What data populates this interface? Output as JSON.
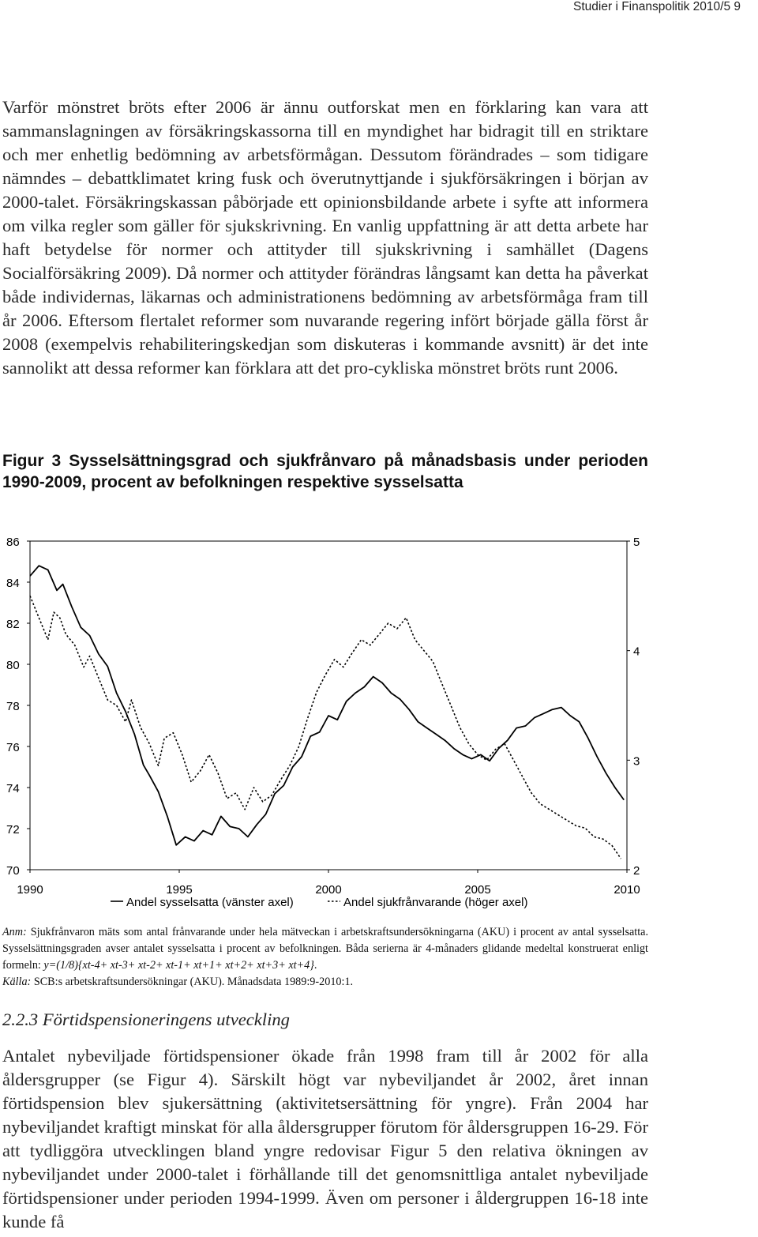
{
  "header": {
    "running_head": "Studier i Finanspolitik 2010/5  9"
  },
  "paragraph1": "Varför mönstret bröts efter 2006 är ännu outforskat men en förklaring kan vara att sammanslagningen av försäkringskassorna till en myndighet har bidragit till en striktare och mer enhetlig bedömning av arbetsförmågan. Dessutom förändrades – som tidigare nämndes – debattklimatet kring fusk och överutnyttjande i sjukförsäkringen i början av 2000-talet. Försäkringskassan påbörjade ett opinionsbildande arbete i syfte att informera om vilka regler som gäller för sjukskrivning. En vanlig uppfattning är att detta arbete har haft betydelse för normer och attityder till sjukskrivning i samhället (Dagens Socialförsäkring 2009). Då normer och attityder förändras långsamt kan detta ha påverkat både individernas, läkarnas och administrationens bedömning av arbetsförmåga fram till år 2006. Eftersom flertalet reformer som nuvarande regering infört började gälla först år 2008 (exempelvis rehabiliteringskedjan som diskuteras i kommande avsnitt) är det inte sannolikt att dessa reformer kan förklara att det pro-cykliska mönstret bröts runt 2006.",
  "figure": {
    "caption": "Figur 3 Sysselsättningsgrad och sjukfrånvaro på månadsbasis under perioden 1990-2009, procent av befolkningen respektive sysselsatta",
    "note": {
      "anm_label": "Anm:",
      "anm_text": " Sjukfrånvaron mäts som antal frånvarande under hela mätveckan i arbetskraftsundersökningarna (AKU) i procent av antal sysselsatta. Sysselsättningsgraden avser antalet sysselsatta i procent av befolkningen. Båda serierna är 4-månaders glidande medeltal konstruerat enligt formeln: ",
      "formula": "y=(1/8){xt-4+ xt-3+ xt-2+ xt-1+ xt+1+ xt+2+ xt+3+ xt+4}",
      "anm_end": ".",
      "source_label": "Källa:",
      "source_text": " SCB:s arbetskraftsundersökningar (AKU). Månadsdata 1989:9-2010:1."
    }
  },
  "chart_data": {
    "type": "line",
    "title": "",
    "x_ticks": [
      "1990",
      "1995",
      "2000",
      "2005",
      "2010"
    ],
    "xlim": [
      1990,
      2010
    ],
    "y_left": {
      "ticks": [
        "86",
        "84",
        "82",
        "80",
        "78",
        "76",
        "74",
        "72",
        "70"
      ],
      "range": [
        70,
        86
      ]
    },
    "y_right": {
      "ticks": [
        "5",
        "4",
        "3",
        "2"
      ],
      "range": [
        2,
        5
      ]
    },
    "grid": false,
    "legend_position": "bottom",
    "series": [
      {
        "name": "Andel sysselsatta (vänster axel)",
        "axis": "left",
        "style": "solid",
        "color": "#000000",
        "points": [
          [
            1990.0,
            84.3
          ],
          [
            1990.3,
            84.8
          ],
          [
            1990.6,
            84.6
          ],
          [
            1990.9,
            83.6
          ],
          [
            1991.1,
            83.9
          ],
          [
            1991.4,
            82.8
          ],
          [
            1991.7,
            81.8
          ],
          [
            1992.0,
            81.4
          ],
          [
            1992.3,
            80.5
          ],
          [
            1992.6,
            79.9
          ],
          [
            1992.9,
            78.6
          ],
          [
            1993.2,
            77.7
          ],
          [
            1993.5,
            76.6
          ],
          [
            1993.8,
            75.1
          ],
          [
            1994.0,
            74.6
          ],
          [
            1994.3,
            73.8
          ],
          [
            1994.6,
            72.6
          ],
          [
            1994.9,
            71.2
          ],
          [
            1995.2,
            71.6
          ],
          [
            1995.5,
            71.4
          ],
          [
            1995.8,
            71.9
          ],
          [
            1996.1,
            71.7
          ],
          [
            1996.4,
            72.6
          ],
          [
            1996.7,
            72.1
          ],
          [
            1997.0,
            72.0
          ],
          [
            1997.3,
            71.6
          ],
          [
            1997.6,
            72.2
          ],
          [
            1997.9,
            72.7
          ],
          [
            1998.2,
            73.7
          ],
          [
            1998.5,
            74.1
          ],
          [
            1998.8,
            75.0
          ],
          [
            1999.1,
            75.5
          ],
          [
            1999.4,
            76.5
          ],
          [
            1999.7,
            76.7
          ],
          [
            2000.0,
            77.5
          ],
          [
            2000.3,
            77.3
          ],
          [
            2000.6,
            78.2
          ],
          [
            2000.9,
            78.6
          ],
          [
            2001.2,
            78.9
          ],
          [
            2001.5,
            79.4
          ],
          [
            2001.8,
            79.1
          ],
          [
            2002.1,
            78.6
          ],
          [
            2002.4,
            78.3
          ],
          [
            2002.7,
            77.8
          ],
          [
            2003.0,
            77.2
          ],
          [
            2003.3,
            76.9
          ],
          [
            2003.6,
            76.6
          ],
          [
            2003.9,
            76.3
          ],
          [
            2004.2,
            75.9
          ],
          [
            2004.5,
            75.6
          ],
          [
            2004.8,
            75.4
          ],
          [
            2005.1,
            75.6
          ],
          [
            2005.4,
            75.3
          ],
          [
            2005.7,
            75.9
          ],
          [
            2006.0,
            76.3
          ],
          [
            2006.3,
            76.9
          ],
          [
            2006.6,
            77.0
          ],
          [
            2006.9,
            77.4
          ],
          [
            2007.2,
            77.6
          ],
          [
            2007.5,
            77.8
          ],
          [
            2007.8,
            77.9
          ],
          [
            2008.1,
            77.5
          ],
          [
            2008.4,
            77.2
          ],
          [
            2008.7,
            76.4
          ],
          [
            2009.0,
            75.5
          ],
          [
            2009.3,
            74.7
          ],
          [
            2009.6,
            74.0
          ],
          [
            2009.9,
            73.4
          ]
        ]
      },
      {
        "name": "Andel sjukfrånvarande (höger axel)",
        "axis": "right",
        "style": "dotted",
        "color": "#000000",
        "points": [
          [
            1990.0,
            4.5
          ],
          [
            1990.3,
            4.3
          ],
          [
            1990.6,
            4.1
          ],
          [
            1990.8,
            4.35
          ],
          [
            1991.0,
            4.3
          ],
          [
            1991.2,
            4.15
          ],
          [
            1991.5,
            4.05
          ],
          [
            1991.8,
            3.85
          ],
          [
            1992.0,
            3.95
          ],
          [
            1992.3,
            3.75
          ],
          [
            1992.6,
            3.55
          ],
          [
            1992.9,
            3.5
          ],
          [
            1993.2,
            3.35
          ],
          [
            1993.4,
            3.55
          ],
          [
            1993.7,
            3.3
          ],
          [
            1994.0,
            3.15
          ],
          [
            1994.3,
            2.95
          ],
          [
            1994.5,
            3.2
          ],
          [
            1994.8,
            3.25
          ],
          [
            1995.1,
            3.05
          ],
          [
            1995.4,
            2.8
          ],
          [
            1995.7,
            2.9
          ],
          [
            1996.0,
            3.05
          ],
          [
            1996.3,
            2.88
          ],
          [
            1996.6,
            2.65
          ],
          [
            1996.9,
            2.7
          ],
          [
            1997.2,
            2.55
          ],
          [
            1997.5,
            2.75
          ],
          [
            1997.8,
            2.62
          ],
          [
            1998.1,
            2.68
          ],
          [
            1998.4,
            2.82
          ],
          [
            1998.7,
            2.95
          ],
          [
            1999.0,
            3.12
          ],
          [
            1999.3,
            3.38
          ],
          [
            1999.6,
            3.62
          ],
          [
            1999.9,
            3.78
          ],
          [
            2000.2,
            3.92
          ],
          [
            2000.5,
            3.85
          ],
          [
            2000.8,
            3.98
          ],
          [
            2001.1,
            4.1
          ],
          [
            2001.4,
            4.05
          ],
          [
            2001.7,
            4.15
          ],
          [
            2002.0,
            4.25
          ],
          [
            2002.3,
            4.2
          ],
          [
            2002.6,
            4.3
          ],
          [
            2002.9,
            4.1
          ],
          [
            2003.2,
            4.0
          ],
          [
            2003.5,
            3.9
          ],
          [
            2003.8,
            3.7
          ],
          [
            2004.1,
            3.5
          ],
          [
            2004.4,
            3.3
          ],
          [
            2004.7,
            3.15
          ],
          [
            2005.0,
            3.05
          ],
          [
            2005.3,
            3.0
          ],
          [
            2005.6,
            3.1
          ],
          [
            2005.9,
            3.15
          ],
          [
            2006.2,
            3.0
          ],
          [
            2006.5,
            2.85
          ],
          [
            2006.8,
            2.7
          ],
          [
            2007.1,
            2.6
          ],
          [
            2007.4,
            2.55
          ],
          [
            2007.7,
            2.5
          ],
          [
            2008.0,
            2.45
          ],
          [
            2008.3,
            2.4
          ],
          [
            2008.6,
            2.38
          ],
          [
            2008.9,
            2.3
          ],
          [
            2009.2,
            2.28
          ],
          [
            2009.5,
            2.22
          ],
          [
            2009.8,
            2.1
          ]
        ]
      }
    ]
  },
  "section": {
    "heading": "2.2.3 Förtidspensioneringens utveckling"
  },
  "paragraph2": "Antalet nybeviljade förtidspensioner ökade från 1998 fram till år 2002 för alla åldersgrupper (se Figur 4). Särskilt högt var nybeviljandet år 2002, året innan förtidspension blev sjukersättning (aktivitetsersättning för yngre). Från 2004 har nybeviljandet kraftigt minskat för alla åldersgrupper förutom för åldersgruppen 16-29. För att tydliggöra utvecklingen bland yngre redovisar Figur 5 den relativa ökningen av nybeviljandet under 2000-talet i förhållande till det genomsnittliga antalet nybeviljade förtidspensioner under perioden 1994-1999. Även om personer i åldergruppen 16-18 inte kunde få"
}
